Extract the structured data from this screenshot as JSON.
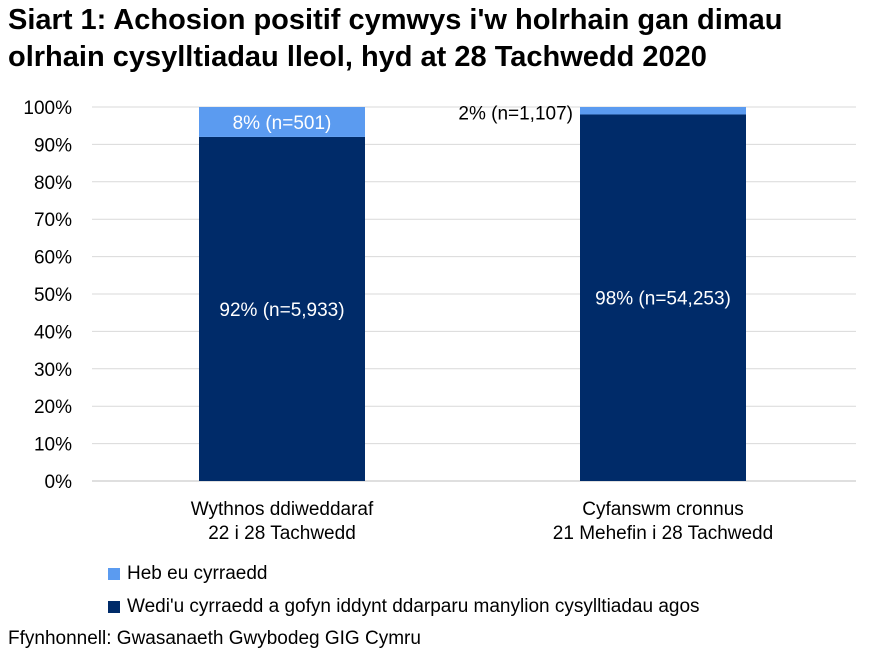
{
  "title": {
    "line1": "Siart 1: Achosion positif cymwys i'w holrhain gan dimau",
    "line2": "olrhain cysylltiadau lleol, hyd at 28 Tachwedd 2020"
  },
  "source": "Ffynhonnell: Gwasanaeth Gwybodeg GIG Cymru",
  "colors": {
    "not_reached": "#5b9bf0",
    "reached": "#002b69",
    "gridline": "#d9d9d9",
    "axis": "#bfbfbf"
  },
  "chart_data": {
    "type": "bar",
    "stacked": true,
    "ylim": [
      0,
      100
    ],
    "yticks": [
      "0%",
      "10%",
      "20%",
      "30%",
      "40%",
      "50%",
      "60%",
      "70%",
      "80%",
      "90%",
      "100%"
    ],
    "grid": true,
    "legend_position": "bottom-left",
    "categories": [
      [
        "Wythnos ddiweddaraf",
        "22 i 28 Tachwedd"
      ],
      [
        "Cyfanswm cronnus",
        "21 Mehefin i 28 Tachwedd"
      ]
    ],
    "series": [
      {
        "name": "Wedi'u cyrraedd a gofyn iddynt ddarparu manylion cysylltiadau agos",
        "color_key": "reached",
        "values": [
          92,
          98
        ],
        "labels": [
          "92% (n=5,933)",
          "98% (n=54,253)"
        ]
      },
      {
        "name": "Heb eu cyrraedd",
        "color_key": "not_reached",
        "values": [
          8,
          2
        ],
        "labels": [
          "8% (n=501)",
          "2% (n=1,107)"
        ]
      }
    ]
  }
}
